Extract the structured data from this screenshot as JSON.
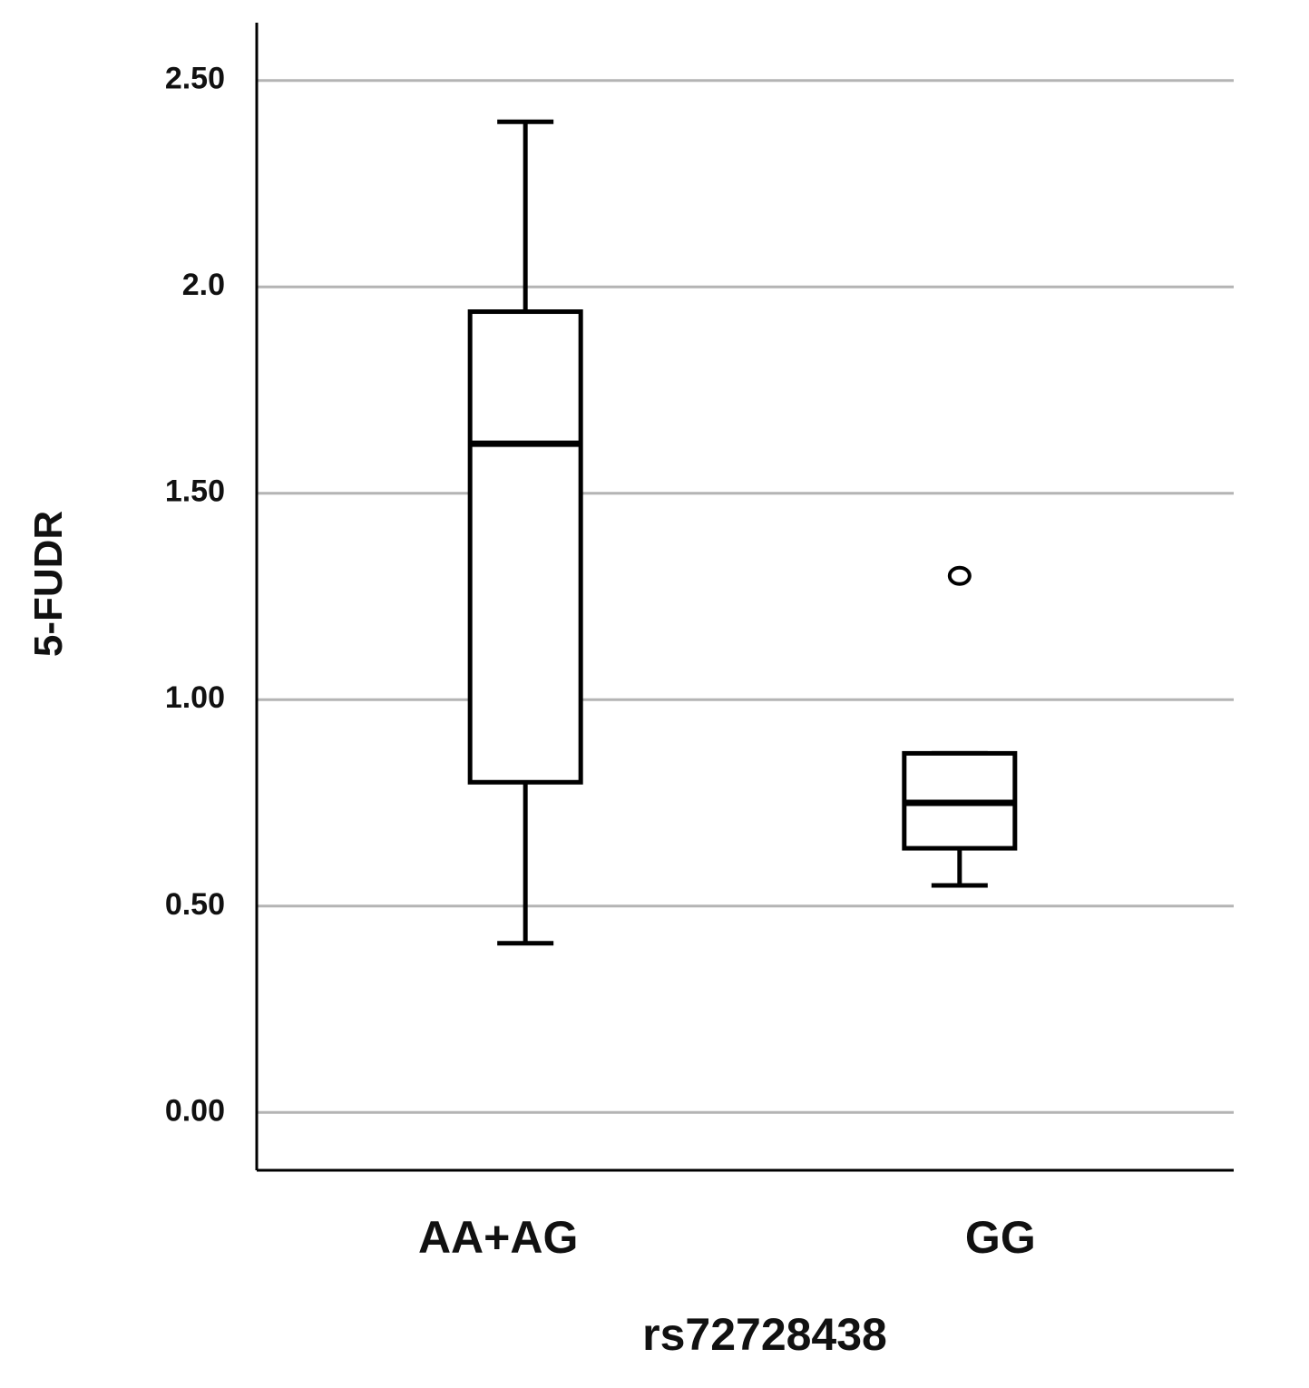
{
  "chart_data": {
    "type": "box",
    "x_label": "rs72728438",
    "y_label": "5-FUDR",
    "categories": [
      "AA+AG",
      "GG"
    ],
    "min": [
      0.41,
      0.55
    ],
    "q1": [
      0.8,
      0.64
    ],
    "median": [
      1.62,
      0.75
    ],
    "q3": [
      1.94,
      0.87
    ],
    "max": [
      2.4,
      0.87
    ],
    "outliers": [
      [],
      [
        1.3
      ]
    ],
    "ylim": [
      -0.14,
      2.64
    ],
    "yticks": [
      {
        "value": 0,
        "label": "0.00"
      },
      {
        "value": 0.5,
        "label": "0.50"
      },
      {
        "value": 1,
        "label": "1.00"
      },
      {
        "value": 1.5,
        "label": "1.50"
      },
      {
        "value": 2,
        "label": "2.0"
      },
      {
        "value": 2.5,
        "label": "2.50"
      }
    ],
    "grid": true,
    "color": "#000000",
    "box_fill": "#ffffff",
    "grid_color": "#b4b4b4"
  }
}
